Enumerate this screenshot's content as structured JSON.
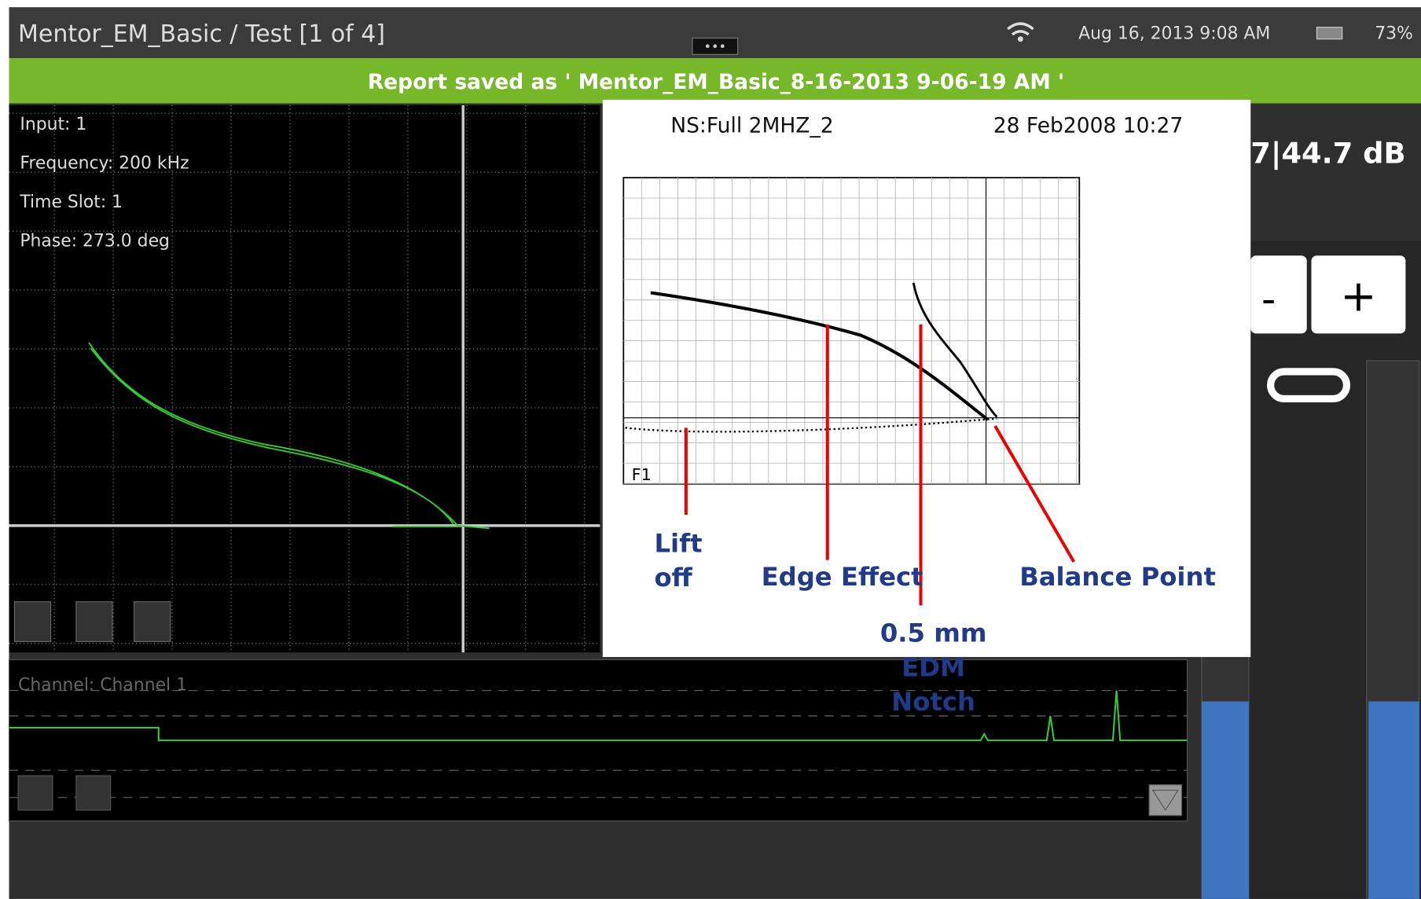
{
  "header": {
    "title": "Mentor_EM_Basic  / Test  [1 of 4]",
    "datetime": "Aug 16, 2013  9:08 AM",
    "battery": "73%"
  },
  "banner": "Report saved as ' Mentor_EM_Basic_8-16-2013 9-06-19 AM '",
  "scope": {
    "info": [
      "Input: 1",
      "Frequency: 200 kHz",
      "Time Slot: 1",
      "Phase: 273.0 deg"
    ]
  },
  "gain": "7|44.7 dB",
  "buttons": {
    "minus": "-",
    "plus": "+"
  },
  "strip": {
    "channel": "Channel: Channel 1"
  },
  "inset": {
    "header_left": "NS:Full   2MHZ_2",
    "header_right": "28 Feb2008   10:27",
    "frame_label": "F1",
    "annotations": [
      {
        "lines": [
          "Lift",
          "off"
        ]
      },
      {
        "lines": [
          "Edge Effect"
        ]
      },
      {
        "lines": [
          "0.5 mm",
          "EDM",
          "Notch"
        ]
      },
      {
        "lines": [
          "Balance Point"
        ]
      }
    ]
  }
}
